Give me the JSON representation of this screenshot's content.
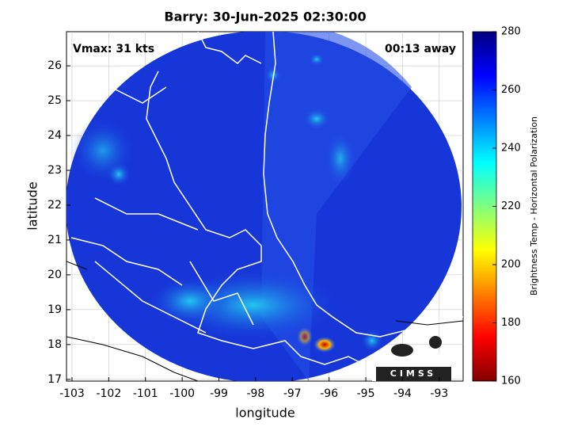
{
  "chart_data": {
    "type": "map",
    "title": "Barry: 30-Jun-2025 02:30:00",
    "annotations": [
      "Vmax: 31 kts",
      "00:13 away"
    ],
    "xlabel": "longitude",
    "ylabel": "latitude",
    "xlim": [
      -103.15,
      -92.35
    ],
    "ylim": [
      16.95,
      26.98
    ],
    "xticks": [
      -103,
      -102,
      -101,
      -100,
      -99,
      -98,
      -97,
      -96,
      -95,
      -94,
      -93
    ],
    "yticks": [
      17,
      18,
      19,
      20,
      21,
      22,
      23,
      24,
      25,
      26
    ],
    "grid": true,
    "colorbar": {
      "label": "Brightness Temp - Horizontal Polarization",
      "lim": [
        160,
        280
      ],
      "ticks": [
        160,
        180,
        200,
        220,
        240,
        260,
        280
      ]
    },
    "logo": "CIMSS"
  }
}
